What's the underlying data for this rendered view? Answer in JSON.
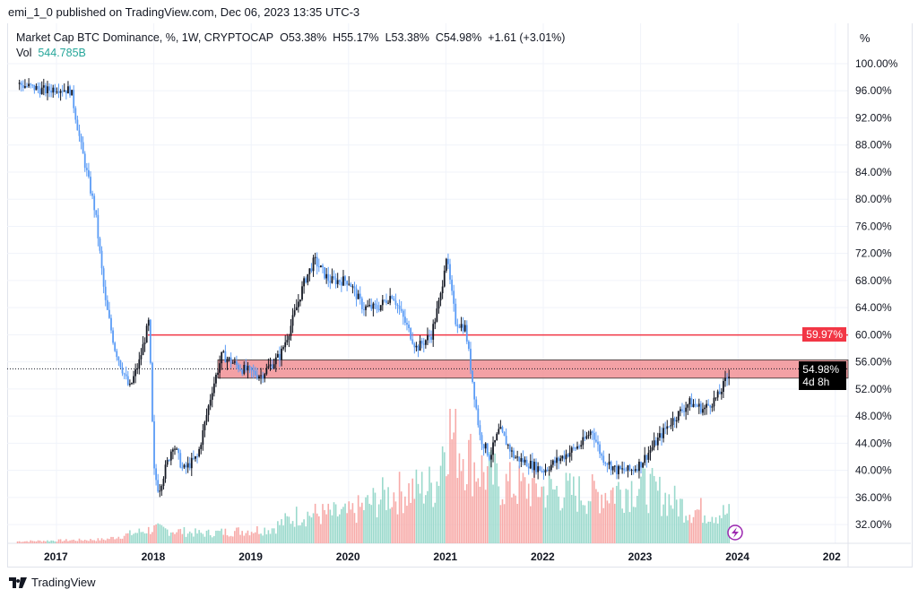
{
  "header": {
    "published": "emi_1_0 published on TradingView.com, Dec 06, 2023 13:35 UTC-3"
  },
  "legend": {
    "symbol": "Market Cap BTC Dominance, %, 1W, CRYPTOCAP",
    "open": "O53.38%",
    "high": "H55.17%",
    "low": "L53.38%",
    "close": "C54.98%",
    "change": "+1.61 (+3.01%)",
    "vol_label": "Vol",
    "vol_value": "544.785B"
  },
  "axis": {
    "unit": "%",
    "y_ticks": [
      "100.00%",
      "96.00%",
      "92.00%",
      "88.00%",
      "84.00%",
      "80.00%",
      "76.00%",
      "72.00%",
      "68.00%",
      "64.00%",
      "60.00%",
      "56.00%",
      "52.00%",
      "48.00%",
      "44.00%",
      "40.00%",
      "36.00%",
      "32.00%"
    ],
    "x_ticks": [
      "2017",
      "2018",
      "2019",
      "2020",
      "2021",
      "2022",
      "2023",
      "2024",
      "202"
    ]
  },
  "tags": {
    "level": "59.97%",
    "price": "54.98%",
    "countdown": "4d 8h"
  },
  "colors": {
    "up": "#131722",
    "down": "#5b9cf6",
    "level": "#f23645",
    "zone": "#f08a8f",
    "vol_up": "#9ad9cc",
    "vol_down": "#f7aaa8"
  },
  "chart_data": {
    "type": "candlestick",
    "title": "Market Cap BTC Dominance, %, 1W",
    "ylim": [
      30,
      102
    ],
    "path": [
      [
        2016.6,
        97
      ],
      [
        2016.9,
        96
      ],
      [
        2017.0,
        96.5
      ],
      [
        2017.15,
        96
      ],
      [
        2017.25,
        88
      ],
      [
        2017.4,
        78
      ],
      [
        2017.5,
        65
      ],
      [
        2017.6,
        58
      ],
      [
        2017.75,
        52
      ],
      [
        2017.85,
        56
      ],
      [
        2017.95,
        62
      ],
      [
        2018.0,
        40
      ],
      [
        2018.05,
        37
      ],
      [
        2018.2,
        44
      ],
      [
        2018.3,
        40
      ],
      [
        2018.45,
        42
      ],
      [
        2018.6,
        52
      ],
      [
        2018.7,
        57
      ],
      [
        2018.9,
        55
      ],
      [
        2019.1,
        54
      ],
      [
        2019.3,
        57
      ],
      [
        2019.4,
        61
      ],
      [
        2019.55,
        68
      ],
      [
        2019.65,
        71
      ],
      [
        2019.8,
        68
      ],
      [
        2020.0,
        68
      ],
      [
        2020.15,
        64
      ],
      [
        2020.3,
        64
      ],
      [
        2020.45,
        66
      ],
      [
        2020.7,
        58
      ],
      [
        2020.85,
        60
      ],
      [
        2020.95,
        66
      ],
      [
        2021.0,
        72
      ],
      [
        2021.1,
        62
      ],
      [
        2021.2,
        61
      ],
      [
        2021.35,
        45
      ],
      [
        2021.45,
        42
      ],
      [
        2021.55,
        46
      ],
      [
        2021.7,
        42
      ],
      [
        2021.85,
        41
      ],
      [
        2022.0,
        40
      ],
      [
        2022.2,
        42
      ],
      [
        2022.4,
        44
      ],
      [
        2022.5,
        46
      ],
      [
        2022.6,
        42
      ],
      [
        2022.75,
        40
      ],
      [
        2022.9,
        40
      ],
      [
        2023.0,
        41
      ],
      [
        2023.15,
        44
      ],
      [
        2023.3,
        47
      ],
      [
        2023.5,
        50
      ],
      [
        2023.65,
        49
      ],
      [
        2023.8,
        51
      ],
      [
        2023.9,
        54
      ],
      [
        2023.92,
        54.98
      ]
    ],
    "volume_profile": [
      [
        2016.6,
        0.2
      ],
      [
        2017.5,
        0.4
      ],
      [
        2018.0,
        1.5
      ],
      [
        2018.5,
        1
      ],
      [
        2019.2,
        1.5
      ],
      [
        2019.5,
        3
      ],
      [
        2020.0,
        3
      ],
      [
        2020.4,
        5
      ],
      [
        2020.9,
        6
      ],
      [
        2021.0,
        12
      ],
      [
        2021.3,
        8
      ],
      [
        2021.6,
        6
      ],
      [
        2022.5,
        5
      ],
      [
        2023.0,
        6
      ],
      [
        2023.5,
        3.5
      ],
      [
        2023.92,
        3
      ]
    ],
    "level": 59.97,
    "zone": [
      53.6,
      56.3
    ]
  }
}
